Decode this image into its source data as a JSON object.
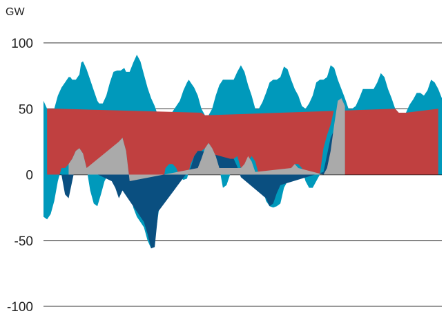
{
  "chart_data": {
    "type": "area",
    "title": "",
    "xlabel": "",
    "ylabel": "GW",
    "ylim": [
      -100,
      100
    ],
    "y_ticks": [
      100,
      50,
      0,
      -50,
      -100
    ],
    "y_tick_labels": [
      "100",
      "50",
      "0",
      "-50",
      "-100"
    ],
    "grid": true,
    "x_ticks": [],
    "series": [
      {
        "color": "#0099bb",
        "values": [
          [
            0,
            56
          ],
          [
            2,
            50
          ],
          [
            6,
            50
          ],
          [
            8,
            60
          ],
          [
            10,
            66
          ],
          [
            12,
            70
          ],
          [
            14,
            74
          ],
          [
            15,
            74
          ],
          [
            16,
            72
          ],
          [
            18,
            72
          ],
          [
            20,
            76
          ],
          [
            21,
            85
          ],
          [
            22,
            86
          ],
          [
            24,
            80
          ],
          [
            26,
            72
          ],
          [
            28,
            64
          ],
          [
            30,
            56
          ],
          [
            31,
            54
          ],
          [
            33,
            54
          ],
          [
            35,
            60
          ],
          [
            37,
            70
          ],
          [
            39,
            78
          ],
          [
            41,
            79
          ],
          [
            43,
            79
          ],
          [
            45,
            81
          ],
          [
            46,
            78
          ],
          [
            48,
            78
          ],
          [
            50,
            85
          ],
          [
            52,
            91
          ],
          [
            54,
            86
          ],
          [
            56,
            76
          ],
          [
            58,
            66
          ],
          [
            60,
            58
          ],
          [
            62,
            52
          ],
          [
            64,
            44
          ],
          [
            66,
            42
          ],
          [
            68,
            40
          ],
          [
            70,
            44
          ],
          [
            72,
            48
          ],
          [
            74,
            52
          ],
          [
            76,
            56
          ],
          [
            78,
            64
          ],
          [
            80,
            70
          ],
          [
            81,
            72
          ],
          [
            82,
            70
          ],
          [
            84,
            66
          ],
          [
            86,
            60
          ],
          [
            88,
            50
          ],
          [
            90,
            45
          ],
          [
            92,
            45
          ],
          [
            94,
            50
          ],
          [
            96,
            60
          ],
          [
            98,
            68
          ],
          [
            100,
            72
          ],
          [
            102,
            72
          ],
          [
            104,
            72
          ],
          [
            106,
            72
          ],
          [
            108,
            78
          ],
          [
            110,
            83
          ],
          [
            112,
            78
          ],
          [
            114,
            68
          ],
          [
            116,
            60
          ],
          [
            118,
            50
          ],
          [
            120,
            50
          ],
          [
            122,
            55
          ],
          [
            124,
            62
          ],
          [
            126,
            70
          ],
          [
            128,
            72
          ],
          [
            130,
            72
          ],
          [
            132,
            74
          ],
          [
            134,
            82
          ],
          [
            136,
            80
          ],
          [
            138,
            72
          ],
          [
            140,
            65
          ],
          [
            142,
            60
          ],
          [
            144,
            52
          ],
          [
            146,
            50
          ],
          [
            148,
            54
          ],
          [
            150,
            60
          ],
          [
            152,
            70
          ],
          [
            154,
            72
          ],
          [
            156,
            72
          ],
          [
            158,
            74
          ],
          [
            160,
            83
          ],
          [
            162,
            81
          ],
          [
            164,
            72
          ],
          [
            166,
            65
          ],
          [
            168,
            58
          ],
          [
            170,
            50
          ],
          [
            172,
            50
          ],
          [
            174,
            52
          ],
          [
            176,
            58
          ],
          [
            178,
            65
          ],
          [
            180,
            65
          ],
          [
            182,
            65
          ],
          [
            184,
            65
          ],
          [
            186,
            70
          ],
          [
            188,
            77
          ],
          [
            190,
            74
          ],
          [
            192,
            65
          ],
          [
            194,
            58
          ],
          [
            196,
            50
          ],
          [
            198,
            47
          ],
          [
            200,
            47
          ],
          [
            202,
            47
          ],
          [
            204,
            53
          ],
          [
            206,
            57
          ],
          [
            208,
            62
          ],
          [
            210,
            62
          ],
          [
            212,
            60
          ],
          [
            214,
            64
          ],
          [
            216,
            72
          ],
          [
            218,
            70
          ],
          [
            220,
            65
          ],
          [
            222,
            58
          ]
        ]
      },
      {
        "color": "#c04040",
        "values": [
          [
            2,
            50
          ],
          [
            6,
            50
          ],
          [
            8,
            50
          ],
          [
            88,
            47
          ],
          [
            90,
            45
          ],
          [
            196,
            50
          ],
          [
            198,
            47
          ],
          [
            200,
            47
          ],
          [
            202,
            47
          ],
          [
            220,
            50
          ]
        ]
      },
      {
        "color": "#0099bb",
        "values": [
          [
            0,
            -32
          ],
          [
            2,
            -34
          ],
          [
            4,
            -30
          ],
          [
            6,
            -20
          ],
          [
            8,
            -5
          ],
          [
            10,
            5
          ],
          [
            12,
            5
          ],
          [
            14,
            8
          ],
          [
            16,
            12
          ],
          [
            18,
            18
          ],
          [
            20,
            20
          ],
          [
            22,
            16
          ],
          [
            24,
            5
          ],
          [
            26,
            -12
          ],
          [
            28,
            -22
          ],
          [
            30,
            -24
          ],
          [
            32,
            -15
          ],
          [
            34,
            -5
          ],
          [
            36,
            0
          ],
          [
            38,
            5
          ],
          [
            40,
            18
          ],
          [
            42,
            25
          ],
          [
            44,
            28
          ],
          [
            46,
            18
          ],
          [
            48,
            -5
          ],
          [
            50,
            -25
          ],
          [
            52,
            -32
          ],
          [
            54,
            -36
          ],
          [
            56,
            -40
          ],
          [
            58,
            -50
          ],
          [
            60,
            -56
          ],
          [
            62,
            -50
          ],
          [
            64,
            -30
          ],
          [
            66,
            -10
          ],
          [
            68,
            5
          ],
          [
            70,
            8
          ],
          [
            72,
            8
          ],
          [
            74,
            5
          ],
          [
            76,
            -2
          ],
          [
            78,
            -4
          ],
          [
            80,
            -3
          ],
          [
            82,
            8
          ],
          [
            84,
            14
          ],
          [
            86,
            18
          ],
          [
            88,
            18
          ],
          [
            90,
            20
          ],
          [
            92,
            24
          ],
          [
            94,
            20
          ],
          [
            96,
            14
          ],
          [
            98,
            5
          ],
          [
            100,
            -10
          ],
          [
            102,
            -8
          ],
          [
            104,
            0
          ],
          [
            106,
            12
          ],
          [
            108,
            14
          ],
          [
            110,
            5
          ],
          [
            112,
            5
          ],
          [
            114,
            10
          ],
          [
            116,
            14
          ],
          [
            118,
            10
          ],
          [
            120,
            0
          ],
          [
            122,
            -10
          ],
          [
            124,
            -20
          ],
          [
            126,
            -24
          ],
          [
            128,
            -25
          ],
          [
            130,
            -24
          ],
          [
            132,
            -22
          ],
          [
            134,
            -10
          ],
          [
            136,
            -5
          ],
          [
            138,
            5
          ],
          [
            140,
            8
          ],
          [
            142,
            8
          ],
          [
            144,
            5
          ],
          [
            146,
            -5
          ],
          [
            148,
            -10
          ],
          [
            150,
            -10
          ],
          [
            152,
            -5
          ],
          [
            154,
            0
          ],
          [
            156,
            20
          ],
          [
            158,
            30
          ],
          [
            160,
            38
          ],
          [
            162,
            50
          ],
          [
            164,
            58
          ],
          [
            166,
            56
          ],
          [
            168,
            52
          ]
        ]
      },
      {
        "color": "#0a4f80",
        "values": [
          [
            10,
            0
          ],
          [
            12,
            -15
          ],
          [
            14,
            -18
          ],
          [
            16,
            -5
          ],
          [
            18,
            8
          ],
          [
            38,
            -5
          ],
          [
            40,
            -10
          ],
          [
            42,
            -18
          ],
          [
            44,
            -12
          ],
          [
            56,
            -36
          ],
          [
            58,
            -45
          ],
          [
            60,
            -56
          ],
          [
            62,
            -55
          ],
          [
            64,
            -28
          ],
          [
            82,
            5
          ],
          [
            84,
            14
          ],
          [
            86,
            18
          ],
          [
            88,
            18
          ],
          [
            104,
            12
          ],
          [
            106,
            12
          ],
          [
            108,
            6
          ],
          [
            110,
            -2
          ],
          [
            124,
            -18
          ],
          [
            126,
            -24
          ],
          [
            128,
            -22
          ],
          [
            130,
            -14
          ],
          [
            132,
            -8
          ],
          [
            156,
            2
          ],
          [
            158,
            15
          ],
          [
            160,
            28
          ],
          [
            162,
            34
          ],
          [
            164,
            42
          ]
        ]
      },
      {
        "color": "#aaaaaa",
        "values": [
          [
            14,
            8
          ],
          [
            16,
            12
          ],
          [
            18,
            18
          ],
          [
            20,
            20
          ],
          [
            22,
            16
          ],
          [
            24,
            5
          ],
          [
            42,
            25
          ],
          [
            44,
            28
          ],
          [
            46,
            18
          ],
          [
            48,
            -5
          ],
          [
            86,
            5
          ],
          [
            88,
            12
          ],
          [
            90,
            20
          ],
          [
            92,
            24
          ],
          [
            94,
            20
          ],
          [
            96,
            14
          ],
          [
            98,
            5
          ],
          [
            110,
            5
          ],
          [
            112,
            8
          ],
          [
            114,
            14
          ],
          [
            116,
            10
          ],
          [
            118,
            2
          ],
          [
            138,
            5
          ],
          [
            140,
            8
          ],
          [
            142,
            5
          ],
          [
            156,
            0
          ],
          [
            158,
            5
          ],
          [
            160,
            18
          ],
          [
            162,
            38
          ],
          [
            164,
            56
          ],
          [
            166,
            58
          ],
          [
            168,
            52
          ]
        ]
      }
    ]
  }
}
